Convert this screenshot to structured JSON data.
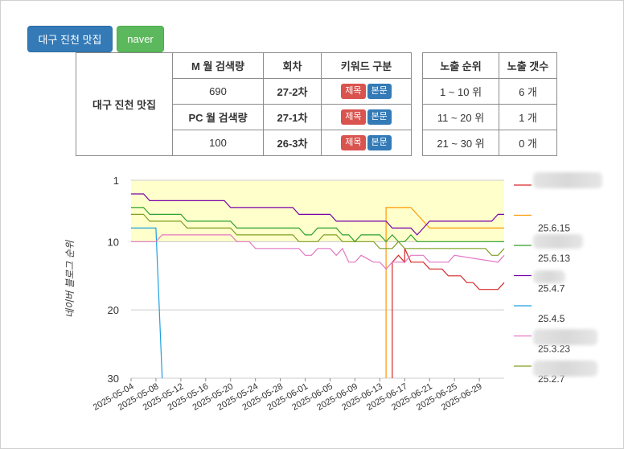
{
  "buttons": {
    "keyword": "대구 진천 맛집",
    "source": "naver"
  },
  "table": {
    "keyword": "대구 진천 맛집",
    "headers": [
      "M 월 검색량",
      "회차",
      "키워드 구분",
      "노출 순위",
      "노출 갯수"
    ],
    "rows": [
      {
        "col1": "690",
        "round": "27-2차",
        "tag1": "제목",
        "tag2": "본문",
        "rank": "1 ~ 10 위",
        "count": "6 개"
      },
      {
        "col1": "PC 월 검색량",
        "round": "27-1차",
        "tag1": "제목",
        "tag2": "본문",
        "rank": "11 ~ 20 위",
        "count": "1 개"
      },
      {
        "col1": "100",
        "round": "26-3차",
        "tag1": "제목",
        "tag2": "본문",
        "rank": "21 ~ 30 위",
        "count": "0 개"
      }
    ]
  },
  "chart_data": {
    "type": "line",
    "ylabel": "네이버 블로그 순위",
    "yticks": [
      1,
      10,
      20,
      30
    ],
    "ylim": [
      30,
      1
    ],
    "y_reversed": true,
    "highlight_band": {
      "from": 1,
      "to": 10,
      "color": "#ffffcc"
    },
    "xlim": [
      "2025-05-04",
      "2025-07-03"
    ],
    "xticks": [
      "2025-05-04",
      "2025-05-08",
      "2025-05-12",
      "2025-05-16",
      "2025-05-20",
      "2025-05-24",
      "2025-05-28",
      "2025-06-01",
      "2025-06-05",
      "2025-06-09",
      "2025-06-13",
      "2025-06-17",
      "2025-06-21",
      "2025-06-25",
      "2025-06-29"
    ],
    "legend_position": "right",
    "series": [
      {
        "name": "",
        "color": "#d62728",
        "points": [
          [
            "2025-06-15",
            30
          ],
          [
            "2025-06-15",
            13
          ],
          [
            "2025-06-16",
            12
          ],
          [
            "2025-06-17",
            13
          ],
          [
            "2025-06-17",
            11
          ],
          [
            "2025-06-18",
            13
          ],
          [
            "2025-06-20",
            13
          ],
          [
            "2025-06-21",
            14
          ],
          [
            "2025-06-23",
            14
          ],
          [
            "2025-06-24",
            15
          ],
          [
            "2025-06-26",
            15
          ],
          [
            "2025-06-27",
            16
          ],
          [
            "2025-06-28",
            16
          ],
          [
            "2025-06-29",
            17
          ],
          [
            "2025-07-02",
            17
          ],
          [
            "2025-07-03",
            16
          ]
        ]
      },
      {
        "name": "25.6.15",
        "color": "#ff9900",
        "points": [
          [
            "2025-06-14",
            30
          ],
          [
            "2025-06-14",
            5
          ],
          [
            "2025-06-18",
            5
          ],
          [
            "2025-06-19",
            6
          ],
          [
            "2025-06-20",
            7
          ],
          [
            "2025-06-21",
            8
          ],
          [
            "2025-07-03",
            8
          ]
        ]
      },
      {
        "name": "25.6.13",
        "color": "#2ca02c",
        "points": [
          [
            "2025-05-04",
            5
          ],
          [
            "2025-05-06",
            5
          ],
          [
            "2025-05-07",
            6
          ],
          [
            "2025-05-12",
            6
          ],
          [
            "2025-05-13",
            7
          ],
          [
            "2025-05-20",
            7
          ],
          [
            "2025-05-21",
            8
          ],
          [
            "2025-05-31",
            8
          ],
          [
            "2025-06-01",
            9
          ],
          [
            "2025-06-02",
            9
          ],
          [
            "2025-06-03",
            8
          ],
          [
            "2025-06-06",
            8
          ],
          [
            "2025-06-07",
            9
          ],
          [
            "2025-06-08",
            9
          ],
          [
            "2025-06-09",
            10
          ],
          [
            "2025-06-10",
            9
          ],
          [
            "2025-06-13",
            9
          ],
          [
            "2025-06-14",
            10
          ],
          [
            "2025-06-15",
            9
          ],
          [
            "2025-06-16",
            10
          ],
          [
            "2025-06-17",
            10
          ],
          [
            "2025-06-18",
            9
          ],
          [
            "2025-06-19",
            10
          ],
          [
            "2025-07-03",
            10
          ]
        ]
      },
      {
        "name": "25.4.7",
        "color": "#7700aa",
        "points": [
          [
            "2025-05-04",
            3
          ],
          [
            "2025-05-06",
            3
          ],
          [
            "2025-05-07",
            4
          ],
          [
            "2025-05-16",
            4
          ],
          [
            "2025-05-17",
            4
          ],
          [
            "2025-05-19",
            4
          ],
          [
            "2025-05-20",
            5
          ],
          [
            "2025-05-30",
            5
          ],
          [
            "2025-05-31",
            6
          ],
          [
            "2025-06-05",
            6
          ],
          [
            "2025-06-06",
            7
          ],
          [
            "2025-06-14",
            7
          ],
          [
            "2025-06-15",
            8
          ],
          [
            "2025-06-18",
            8
          ],
          [
            "2025-06-19",
            9
          ],
          [
            "2025-06-20",
            8
          ],
          [
            "2025-06-21",
            7
          ],
          [
            "2025-07-01",
            7
          ],
          [
            "2025-07-02",
            6
          ],
          [
            "2025-07-03",
            6
          ]
        ]
      },
      {
        "name": "25.4.5",
        "color": "#1f9fe0",
        "points": [
          [
            "2025-05-04",
            8
          ],
          [
            "2025-05-08",
            8
          ],
          [
            "2025-05-09",
            30
          ]
        ]
      },
      {
        "name": "25.3.23",
        "color": "#e377c2",
        "points": [
          [
            "2025-05-04",
            10
          ],
          [
            "2025-05-08",
            10
          ],
          [
            "2025-05-09",
            9
          ],
          [
            "2025-05-20",
            9
          ],
          [
            "2025-05-21",
            10
          ],
          [
            "2025-05-23",
            10
          ],
          [
            "2025-05-24",
            11
          ],
          [
            "2025-05-31",
            11
          ],
          [
            "2025-06-01",
            12
          ],
          [
            "2025-06-02",
            12
          ],
          [
            "2025-06-03",
            11
          ],
          [
            "2025-06-05",
            11
          ],
          [
            "2025-06-06",
            12
          ],
          [
            "2025-06-07",
            11
          ],
          [
            "2025-06-08",
            13
          ],
          [
            "2025-06-09",
            13
          ],
          [
            "2025-06-10",
            12
          ],
          [
            "2025-06-12",
            13
          ],
          [
            "2025-06-13",
            13
          ],
          [
            "2025-06-14",
            14
          ],
          [
            "2025-06-15",
            13
          ],
          [
            "2025-06-17",
            13
          ],
          [
            "2025-06-18",
            12
          ],
          [
            "2025-06-20",
            12
          ],
          [
            "2025-06-21",
            13
          ],
          [
            "2025-06-24",
            13
          ],
          [
            "2025-06-25",
            12
          ],
          [
            "2025-07-02",
            13
          ],
          [
            "2025-07-03",
            12
          ]
        ]
      },
      {
        "name": "25.2.7",
        "color": "#7f9f20",
        "points": [
          [
            "2025-05-04",
            6
          ],
          [
            "2025-05-06",
            6
          ],
          [
            "2025-05-07",
            7
          ],
          [
            "2025-05-12",
            7
          ],
          [
            "2025-05-13",
            8
          ],
          [
            "2025-05-20",
            8
          ],
          [
            "2025-05-21",
            9
          ],
          [
            "2025-05-30",
            9
          ],
          [
            "2025-05-31",
            10
          ],
          [
            "2025-06-03",
            10
          ],
          [
            "2025-06-04",
            9
          ],
          [
            "2025-06-06",
            9
          ],
          [
            "2025-06-07",
            10
          ],
          [
            "2025-06-12",
            10
          ],
          [
            "2025-06-13",
            11
          ],
          [
            "2025-06-15",
            11
          ],
          [
            "2025-06-16",
            10
          ],
          [
            "2025-06-17",
            11
          ],
          [
            "2025-06-30",
            11
          ],
          [
            "2025-07-01",
            12
          ],
          [
            "2025-07-02",
            12
          ],
          [
            "2025-07-03",
            11
          ]
        ]
      }
    ]
  }
}
